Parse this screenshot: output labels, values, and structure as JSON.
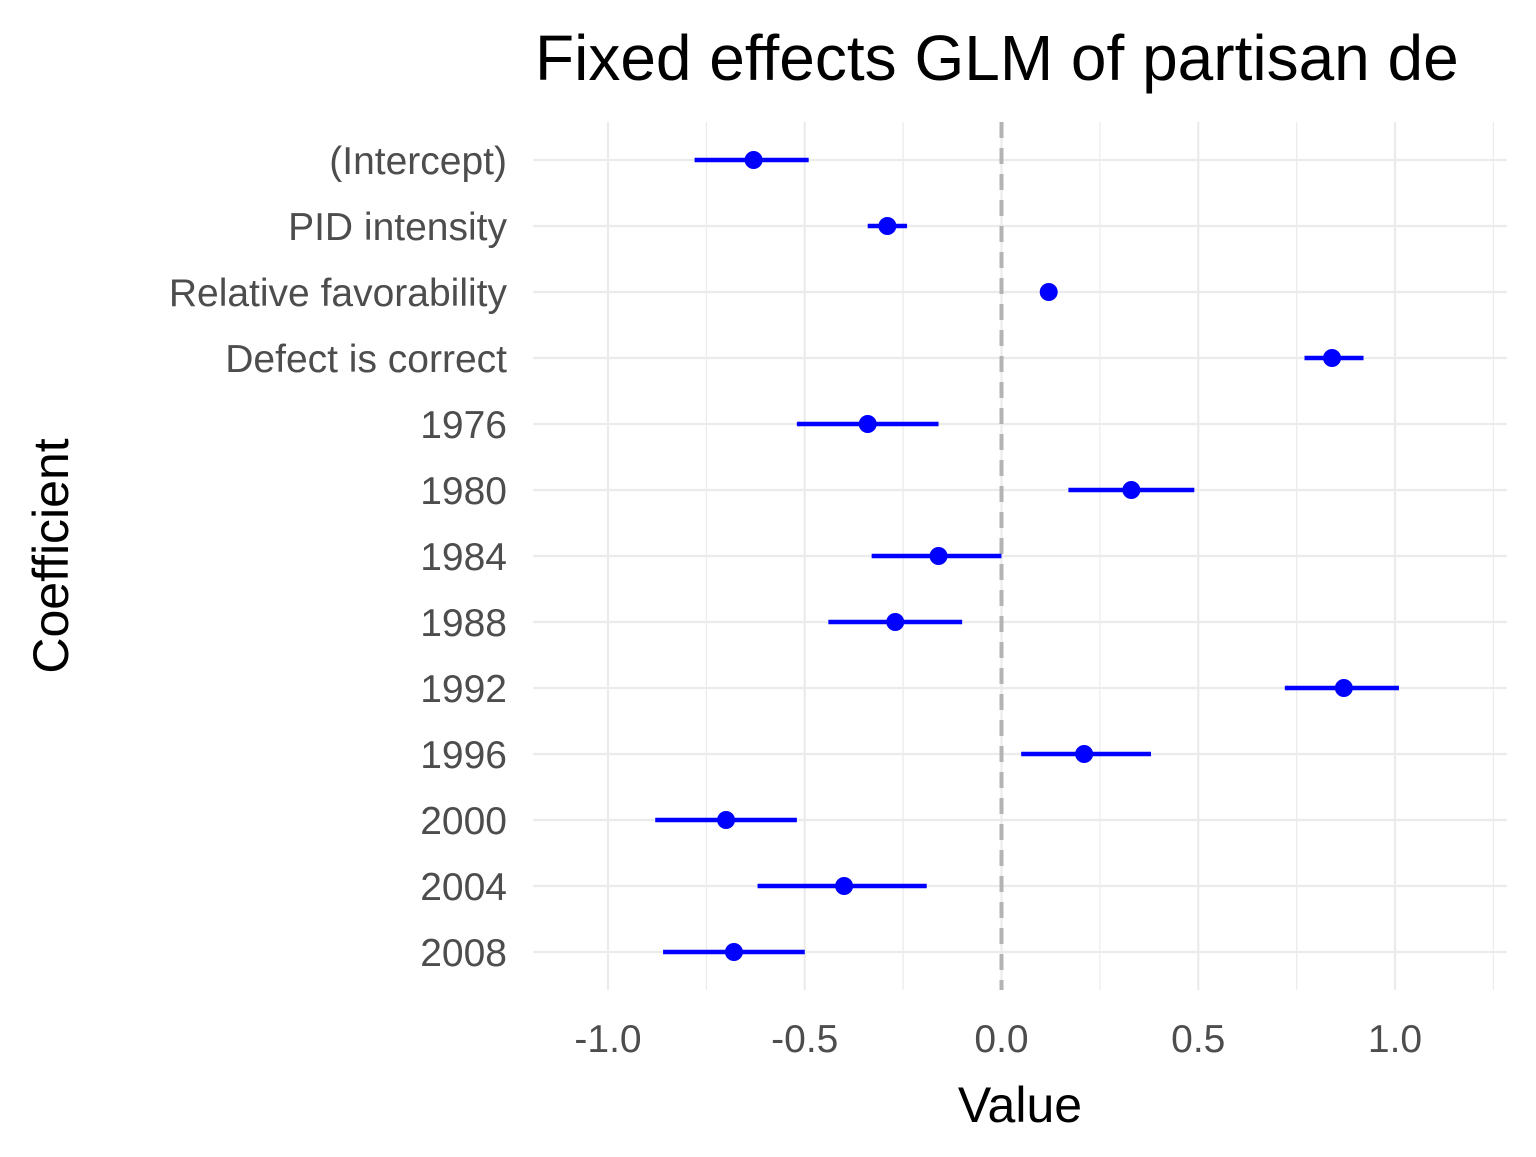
{
  "chart_data": {
    "type": "scatter",
    "subtype": "coefficient-plot",
    "title": "Fixed effects GLM of partisan de",
    "xlabel": "Value",
    "ylabel": "Coefficient",
    "xlim": [
      -1.2,
      1.28
    ],
    "x_ticks": [
      -1.0,
      -0.5,
      0.0,
      0.5,
      1.0
    ],
    "x_tick_labels": [
      "-1.0",
      "-0.5",
      "0.0",
      "0.5",
      "1.0"
    ],
    "reference_line": 0.0,
    "grid": true,
    "coefficients": [
      {
        "label": "(Intercept)",
        "estimate": -0.63,
        "lower": -0.78,
        "upper": -0.49
      },
      {
        "label": "PID intensity",
        "estimate": -0.29,
        "lower": -0.34,
        "upper": -0.24
      },
      {
        "label": "Relative favorability",
        "estimate": 0.12,
        "lower": 0.12,
        "upper": 0.12
      },
      {
        "label": "Defect is correct",
        "estimate": 0.84,
        "lower": 0.77,
        "upper": 0.92
      },
      {
        "label": "1976",
        "estimate": -0.34,
        "lower": -0.52,
        "upper": -0.16
      },
      {
        "label": "1980",
        "estimate": 0.33,
        "lower": 0.17,
        "upper": 0.49
      },
      {
        "label": "1984",
        "estimate": -0.16,
        "lower": -0.33,
        "upper": 0.0
      },
      {
        "label": "1988",
        "estimate": -0.27,
        "lower": -0.44,
        "upper": -0.1
      },
      {
        "label": "1992",
        "estimate": 0.87,
        "lower": 0.72,
        "upper": 1.01
      },
      {
        "label": "1996",
        "estimate": 0.21,
        "lower": 0.05,
        "upper": 0.38
      },
      {
        "label": "2000",
        "estimate": -0.7,
        "lower": -0.88,
        "upper": -0.52
      },
      {
        "label": "2004",
        "estimate": -0.4,
        "lower": -0.62,
        "upper": -0.19
      },
      {
        "label": "2008",
        "estimate": -0.68,
        "lower": -0.86,
        "upper": -0.5
      }
    ],
    "colors": {
      "point": "#0000ff",
      "interval": "#0000ff",
      "reference_line": "#b3b3b3",
      "grid": "#ebebeb"
    }
  }
}
